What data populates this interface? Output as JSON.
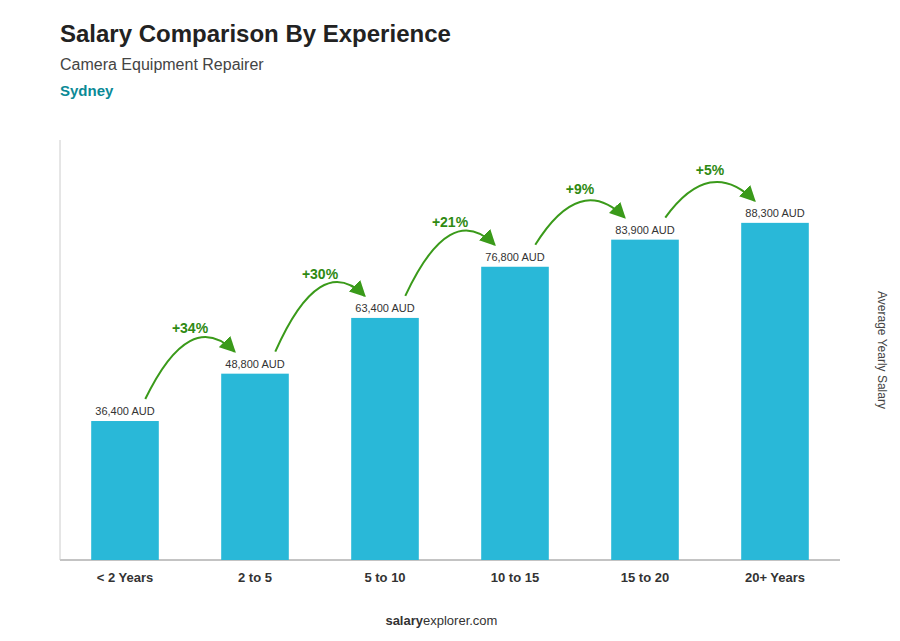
{
  "chart_data": {
    "type": "bar",
    "title": "Salary Comparison By Experience",
    "subtitle": "Camera Equipment Repairer",
    "ylabel": "Average Yearly Salary",
    "annotations": [
      "Sydney",
      "+34%",
      "+30%",
      "+21%",
      "+9%",
      "+5%",
      "salary",
      "explorer.com"
    ],
    "categories": [
      "< 2 Years",
      "2 to 5",
      "5 to 10",
      "10 to 15",
      "15 to 20",
      "20+ Years"
    ],
    "values": [
      36400,
      48800,
      63400,
      76800,
      83900,
      88300
    ],
    "value_labels": [
      "36,400 AUD",
      "48,800 AUD",
      "63,400 AUD",
      "76,800 AUD",
      "83,900 AUD",
      "88,300 AUD"
    ],
    "data_labels": true,
    "color": "#29b8d8",
    "ylim": [
      0,
      110000
    ],
    "tick_labels": "x",
    "grid": false
  }
}
